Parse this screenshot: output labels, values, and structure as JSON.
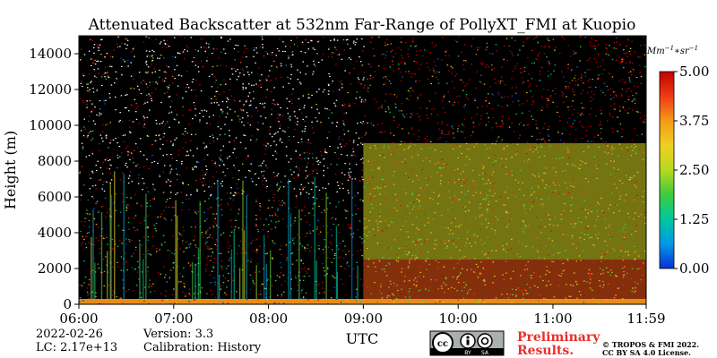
{
  "chart_data": {
    "type": "heatmap",
    "title": "Attenuated Backscatter at 532nm Far-Range of PollyXT_FMI at Kuopio",
    "xlabel": "UTC",
    "ylabel": "Height (m)",
    "x_tick_labels": [
      "06:00",
      "07:00",
      "08:00",
      "09:00",
      "10:00",
      "11:00",
      "11:59"
    ],
    "x_tick_hours": [
      6.0,
      7.0,
      8.0,
      9.0,
      10.0,
      11.0,
      11.9833
    ],
    "xlim_hours": [
      6.0,
      11.9833
    ],
    "y_ticks": [
      0,
      2000,
      4000,
      6000,
      8000,
      10000,
      12000,
      14000
    ],
    "ylim": [
      0,
      15000
    ],
    "colorbar": {
      "unit_label": "Mm^{-1}*sr^{-1}",
      "ticks": [
        0.0,
        1.25,
        2.5,
        3.75,
        5.0
      ],
      "tick_labels": [
        "0.00",
        "1.25",
        "2.50",
        "3.75",
        "5.00"
      ],
      "range": [
        0.0,
        5.0
      ],
      "colormap": [
        "#0b2fd4",
        "#0099e6",
        "#00c8a0",
        "#3ecb3e",
        "#b8d820",
        "#f0d020",
        "#f59a18",
        "#ef3b15",
        "#c30000"
      ]
    },
    "background_color": "#000000",
    "layers": [
      {
        "x_start_hours": 6.0,
        "x_end_hours": 11.9833,
        "z_bottom": 0,
        "z_top": 300,
        "backscatter": 3.8
      },
      {
        "x_start_hours": 9.0,
        "x_end_hours": 11.9833,
        "z_bottom": 300,
        "z_top": 2500,
        "backscatter": 4.2
      },
      {
        "x_start_hours": 9.0,
        "x_end_hours": 11.9833,
        "z_bottom": 2500,
        "z_top": 9000,
        "backscatter": 2.8
      }
    ]
  },
  "footer": {
    "date": "2022-02-26",
    "lc": "LC: 2.17e+13",
    "version": "Version: 3.3",
    "calibration": "Calibration: History",
    "license_badge": [
      "cc",
      "BY",
      "SA"
    ],
    "preliminary_line1": "Preliminary",
    "preliminary_line2": "Results.",
    "copyright_line1": "© TROPOS & FMI 2022.",
    "copyright_line2": "CC BY SA 4.0 License."
  }
}
